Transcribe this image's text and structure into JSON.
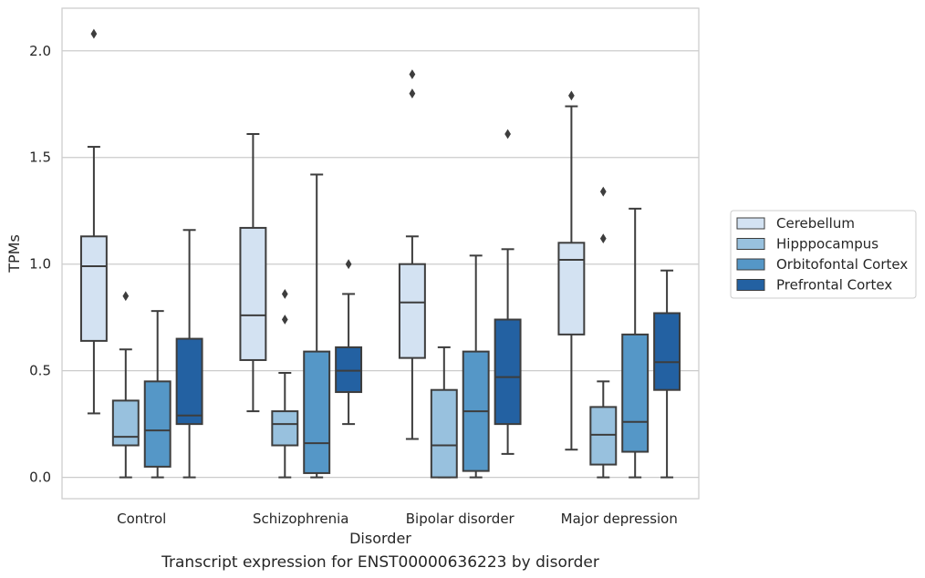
{
  "chart_data": {
    "type": "boxplot",
    "xlabel": "Disorder",
    "ylabel": "TPMs",
    "caption": "Transcript expression for ENST00000636223 by disorder",
    "ylim": [
      -0.1,
      2.2
    ],
    "yticks": [
      0.0,
      0.5,
      1.0,
      1.5,
      2.0
    ],
    "ytick_labels": [
      "0.0",
      "0.5",
      "1.0",
      "1.5",
      "2.0"
    ],
    "grid": "horizontal",
    "legend_position": "right",
    "categories": [
      "Control",
      "Schizophrenia",
      "Bipolar disorder",
      "Major depression"
    ],
    "series": [
      {
        "name": "Cerebellum",
        "color": "#d3e2f2",
        "boxes": [
          {
            "whislo": 0.3,
            "q1": 0.64,
            "med": 0.99,
            "q3": 1.13,
            "whishi": 1.55,
            "fliers": [
              2.08
            ]
          },
          {
            "whislo": 0.31,
            "q1": 0.55,
            "med": 0.76,
            "q3": 1.17,
            "whishi": 1.61,
            "fliers": []
          },
          {
            "whislo": 0.18,
            "q1": 0.56,
            "med": 0.82,
            "q3": 1.0,
            "whishi": 1.13,
            "fliers": [
              1.8,
              1.89
            ]
          },
          {
            "whislo": 0.13,
            "q1": 0.67,
            "med": 1.02,
            "q3": 1.1,
            "whishi": 1.74,
            "fliers": [
              1.79
            ]
          }
        ]
      },
      {
        "name": "Hipppocampus",
        "color": "#98c1de",
        "boxes": [
          {
            "whislo": 0.0,
            "q1": 0.15,
            "med": 0.19,
            "q3": 0.36,
            "whishi": 0.6,
            "fliers": [
              0.85
            ]
          },
          {
            "whislo": 0.0,
            "q1": 0.15,
            "med": 0.25,
            "q3": 0.31,
            "whishi": 0.49,
            "fliers": [
              0.74,
              0.86
            ]
          },
          {
            "whislo": 0.0,
            "q1": 0.0,
            "med": 0.15,
            "q3": 0.41,
            "whishi": 0.61,
            "fliers": []
          },
          {
            "whislo": 0.0,
            "q1": 0.06,
            "med": 0.2,
            "q3": 0.33,
            "whishi": 0.45,
            "fliers": [
              1.12,
              1.34
            ]
          }
        ]
      },
      {
        "name": "Orbitofontal Cortex",
        "color": "#5597c7",
        "boxes": [
          {
            "whislo": 0.0,
            "q1": 0.05,
            "med": 0.22,
            "q3": 0.45,
            "whishi": 0.78,
            "fliers": []
          },
          {
            "whislo": 0.0,
            "q1": 0.02,
            "med": 0.16,
            "q3": 0.59,
            "whishi": 1.42,
            "fliers": []
          },
          {
            "whislo": 0.0,
            "q1": 0.03,
            "med": 0.31,
            "q3": 0.59,
            "whishi": 1.04,
            "fliers": []
          },
          {
            "whislo": 0.0,
            "q1": 0.12,
            "med": 0.26,
            "q3": 0.67,
            "whishi": 1.26,
            "fliers": []
          }
        ]
      },
      {
        "name": "Prefrontal Cortex",
        "color": "#2361a2",
        "boxes": [
          {
            "whislo": 0.0,
            "q1": 0.25,
            "med": 0.29,
            "q3": 0.65,
            "whishi": 1.16,
            "fliers": []
          },
          {
            "whislo": 0.25,
            "q1": 0.4,
            "med": 0.5,
            "q3": 0.61,
            "whishi": 0.86,
            "fliers": [
              1.0
            ]
          },
          {
            "whislo": 0.11,
            "q1": 0.25,
            "med": 0.47,
            "q3": 0.74,
            "whishi": 1.07,
            "fliers": [
              1.61
            ]
          },
          {
            "whislo": 0.0,
            "q1": 0.41,
            "med": 0.54,
            "q3": 0.77,
            "whishi": 0.97,
            "fliers": []
          }
        ]
      }
    ]
  }
}
